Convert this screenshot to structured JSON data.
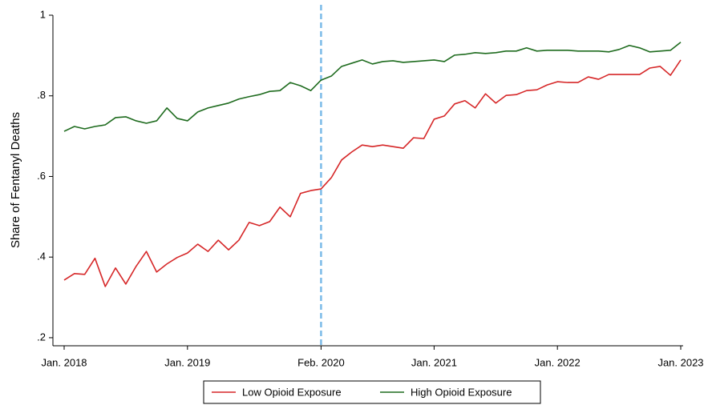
{
  "chart_data": {
    "type": "line",
    "y_label": "Share of Fentanyl Deaths",
    "x": [
      "2018-01",
      "2018-02",
      "2018-03",
      "2018-04",
      "2018-05",
      "2018-06",
      "2018-07",
      "2018-08",
      "2018-09",
      "2018-10",
      "2018-11",
      "2018-12",
      "2019-01",
      "2019-02",
      "2019-03",
      "2019-04",
      "2019-05",
      "2019-06",
      "2019-07",
      "2019-08",
      "2019-09",
      "2019-10",
      "2019-11",
      "2019-12",
      "2020-01",
      "2020-02",
      "2020-03",
      "2020-04",
      "2020-05",
      "2020-06",
      "2020-07",
      "2020-08",
      "2020-09",
      "2020-10",
      "2020-11",
      "2020-12",
      "2021-01",
      "2021-02",
      "2021-03",
      "2021-04",
      "2021-05",
      "2021-06",
      "2021-07",
      "2021-08",
      "2021-09",
      "2021-10",
      "2021-11",
      "2021-12",
      "2022-01",
      "2022-02",
      "2022-03",
      "2022-04",
      "2022-05",
      "2022-06",
      "2022-07",
      "2022-08",
      "2022-09",
      "2022-10",
      "2022-11",
      "2022-12",
      "2023-01"
    ],
    "series": [
      {
        "name": "Low Opioid Exposure",
        "color": "#d62728",
        "values": [
          0.343,
          0.359,
          0.357,
          0.397,
          0.327,
          0.373,
          0.333,
          0.377,
          0.414,
          0.363,
          0.383,
          0.399,
          0.41,
          0.432,
          0.414,
          0.442,
          0.418,
          0.442,
          0.486,
          0.478,
          0.488,
          0.524,
          0.5,
          0.558,
          0.565,
          0.569,
          0.597,
          0.641,
          0.661,
          0.678,
          0.674,
          0.678,
          0.674,
          0.67,
          0.696,
          0.694,
          0.742,
          0.75,
          0.78,
          0.788,
          0.77,
          0.805,
          0.782,
          0.801,
          0.803,
          0.813,
          0.815,
          0.827,
          0.835,
          0.833,
          0.833,
          0.847,
          0.841,
          0.853,
          0.853,
          0.853,
          0.853,
          0.869,
          0.873,
          0.851,
          0.889
        ]
      },
      {
        "name": "High Opioid Exposure",
        "color": "#1e6b1e",
        "values": [
          0.712,
          0.724,
          0.718,
          0.724,
          0.728,
          0.746,
          0.748,
          0.738,
          0.732,
          0.738,
          0.77,
          0.744,
          0.738,
          0.76,
          0.77,
          0.776,
          0.782,
          0.792,
          0.798,
          0.803,
          0.811,
          0.813,
          0.833,
          0.825,
          0.813,
          0.839,
          0.849,
          0.873,
          0.881,
          0.889,
          0.879,
          0.885,
          0.887,
          0.883,
          0.885,
          0.887,
          0.889,
          0.885,
          0.901,
          0.903,
          0.907,
          0.905,
          0.907,
          0.911,
          0.911,
          0.919,
          0.911,
          0.913,
          0.913,
          0.913,
          0.911,
          0.911,
          0.911,
          0.909,
          0.915,
          0.925,
          0.919,
          0.909,
          0.911,
          0.913,
          0.933
        ]
      }
    ],
    "xlim": [
      "2018-01",
      "2023-01"
    ],
    "xticks": [
      {
        "value": "2018-01",
        "label": "Jan. 2018"
      },
      {
        "value": "2019-01",
        "label": "Jan. 2019"
      },
      {
        "value": "2020-02",
        "label": "Feb. 2020"
      },
      {
        "value": "2021-01",
        "label": "Jan. 2021"
      },
      {
        "value": "2022-01",
        "label": "Jan. 2022"
      },
      {
        "value": "2023-01",
        "label": "Jan. 2023"
      }
    ],
    "ylim": [
      0.18,
      1
    ],
    "yticks": [
      {
        "value": 1,
        "label": "1"
      },
      {
        "value": 0.8,
        "label": ".8"
      },
      {
        "value": 0.6,
        "label": ".6"
      },
      {
        "value": 0.4,
        "label": ".4"
      },
      {
        "value": 0.2,
        "label": ".2"
      }
    ],
    "vline": {
      "x": "2020-02",
      "color": "#7cbbe8"
    },
    "grid": false,
    "legend": "bottom"
  }
}
